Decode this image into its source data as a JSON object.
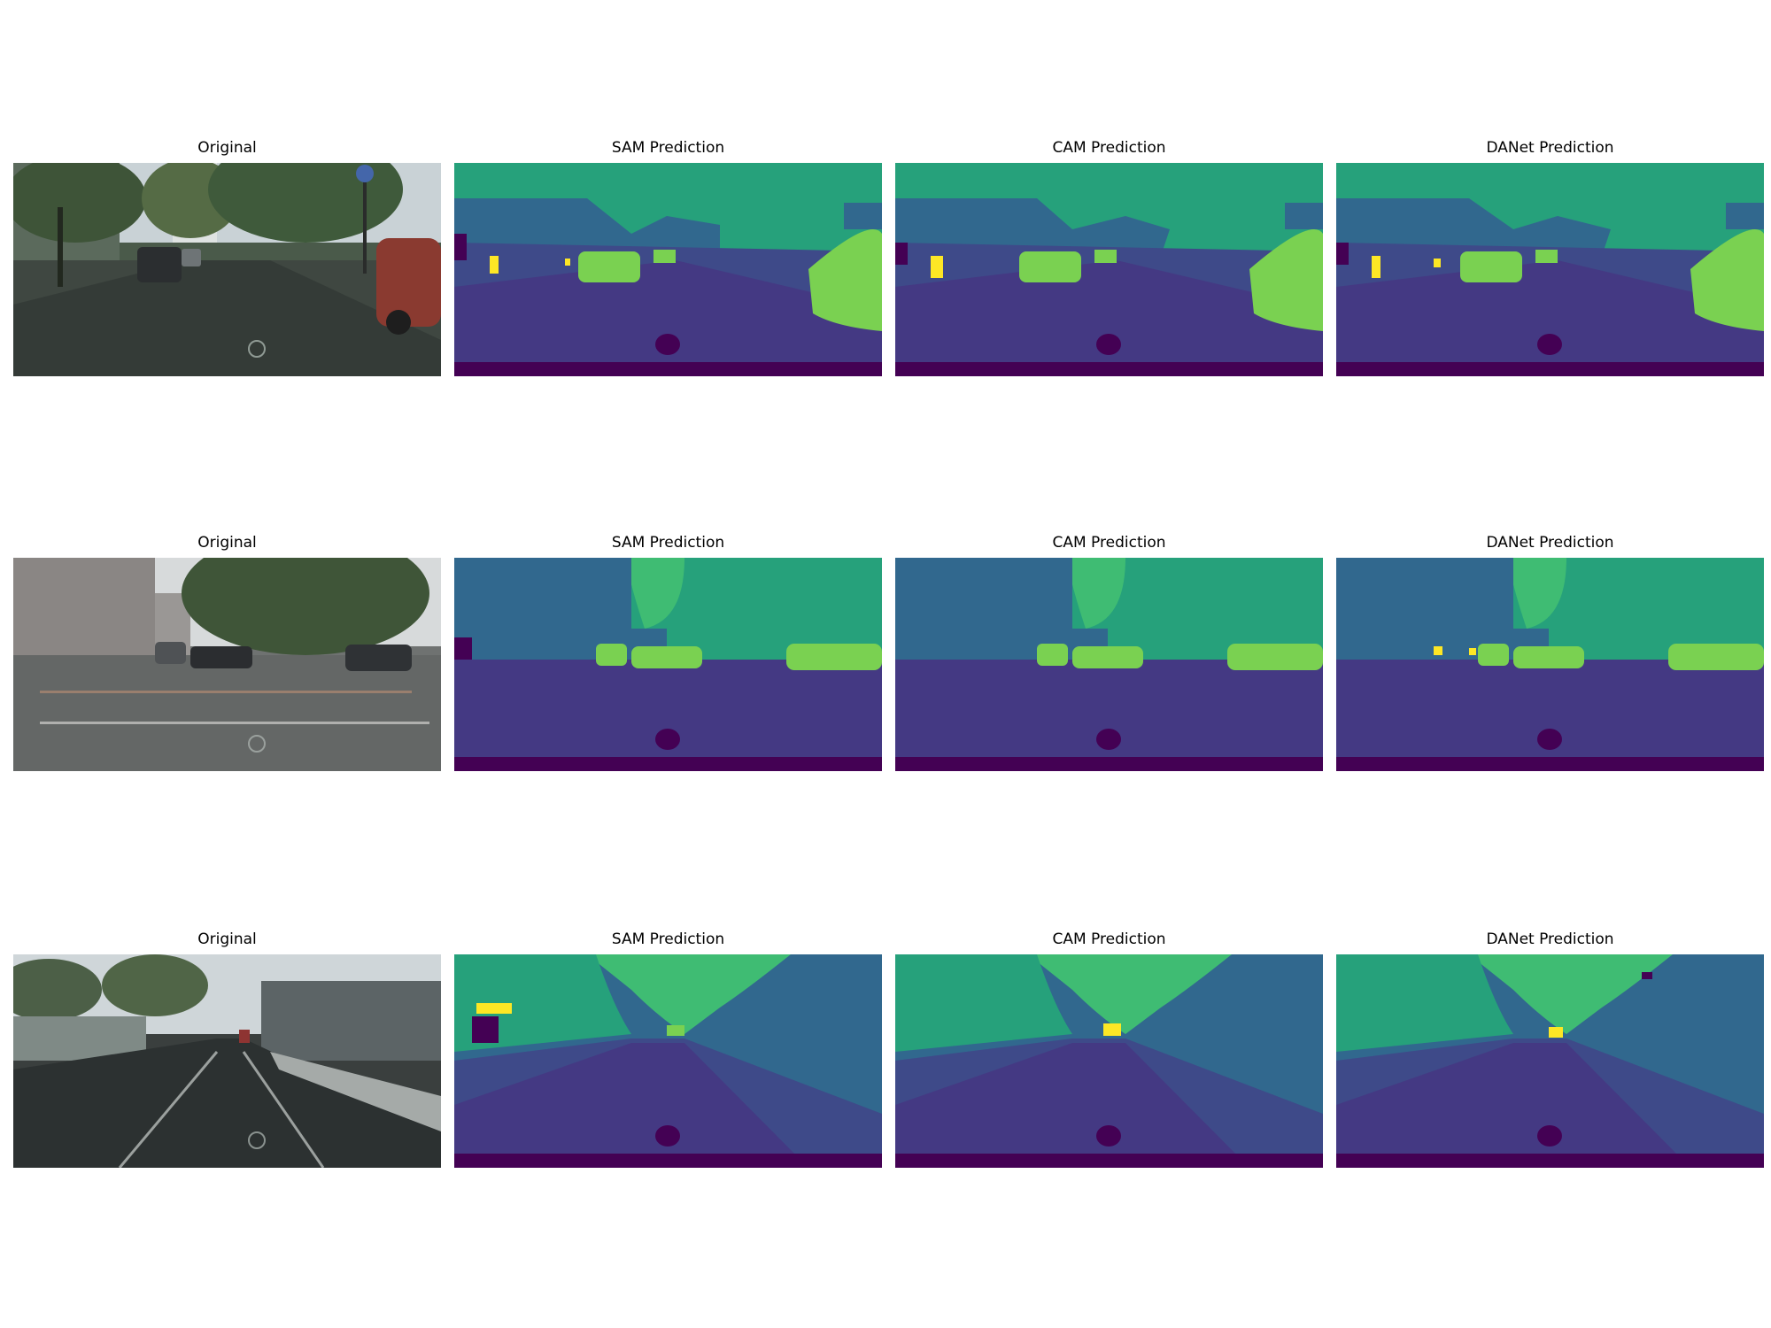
{
  "figure": {
    "rows": [
      {
        "panels": [
          {
            "title": "Original",
            "kind": "photo",
            "scene": "street-row1"
          },
          {
            "title": "SAM Prediction",
            "kind": "segmentation",
            "scene": "street-row1"
          },
          {
            "title": "CAM Prediction",
            "kind": "segmentation",
            "scene": "street-row1"
          },
          {
            "title": "DANet Prediction",
            "kind": "segmentation",
            "scene": "street-row1"
          }
        ]
      },
      {
        "panels": [
          {
            "title": "Original",
            "kind": "photo",
            "scene": "intersection-row2"
          },
          {
            "title": "SAM Prediction",
            "kind": "segmentation",
            "scene": "intersection-row2"
          },
          {
            "title": "CAM Prediction",
            "kind": "segmentation",
            "scene": "intersection-row2"
          },
          {
            "title": "DANet Prediction",
            "kind": "segmentation",
            "scene": "intersection-row2"
          }
        ]
      },
      {
        "panels": [
          {
            "title": "Original",
            "kind": "photo",
            "scene": "road-row3"
          },
          {
            "title": "SAM Prediction",
            "kind": "segmentation",
            "scene": "road-row3"
          },
          {
            "title": "CAM Prediction",
            "kind": "segmentation",
            "scene": "road-row3"
          },
          {
            "title": "DANet Prediction",
            "kind": "segmentation",
            "scene": "road-row3"
          }
        ]
      }
    ],
    "colormap": "viridis",
    "colors": {
      "road": "#443983",
      "sidewalk": "#3e4a89",
      "building": "#31688e",
      "vegetation": "#26a17b",
      "terrain": "#3fbc73",
      "car": "#7ad151",
      "person": "#fde725",
      "ego": "#440154",
      "sky": "#2a788e"
    }
  }
}
